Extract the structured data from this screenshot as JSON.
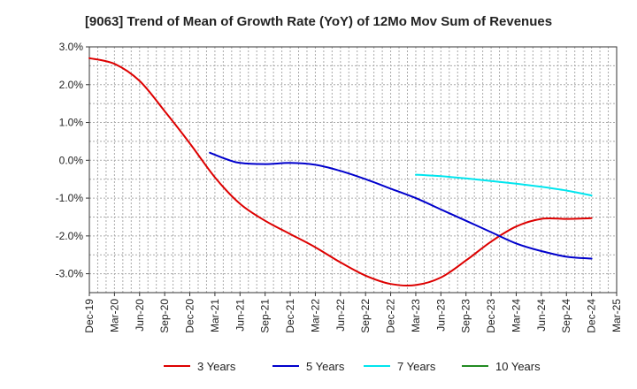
{
  "chart_data": {
    "type": "line",
    "title": "[9063]  Trend of Mean of Growth Rate (YoY) of 12Mo Mov Sum of Revenues",
    "xlabel": "",
    "ylabel": "",
    "ylim": [
      -3.5,
      3.0
    ],
    "y_ticks": [
      3.0,
      2.0,
      1.0,
      0.0,
      -1.0,
      -2.0,
      -3.0
    ],
    "y_tick_labels": [
      "3.0%",
      "2.0%",
      "1.0%",
      "0.0%",
      "-1.0%",
      "-2.0%",
      "-3.0%"
    ],
    "x_tick_labels": [
      "Dec-19",
      "Mar-20",
      "Jun-20",
      "Sep-20",
      "Dec-20",
      "Mar-21",
      "Jun-21",
      "Sep-21",
      "Dec-21",
      "Mar-22",
      "Jun-22",
      "Sep-22",
      "Dec-22",
      "Mar-23",
      "Jun-23",
      "Sep-23",
      "Dec-23",
      "Mar-24",
      "Jun-24",
      "Sep-24",
      "Dec-24",
      "Mar-25"
    ],
    "x_index_range": [
      0,
      21
    ],
    "grid": true,
    "legend_position": "bottom",
    "series": [
      {
        "name": "3 Years",
        "color": "#dd0000",
        "points": [
          [
            0,
            2.7
          ],
          [
            1,
            2.55
          ],
          [
            2,
            2.1
          ],
          [
            3,
            1.3
          ],
          [
            4,
            0.45
          ],
          [
            5,
            -0.45
          ],
          [
            6,
            -1.15
          ],
          [
            7,
            -1.6
          ],
          [
            8,
            -1.95
          ],
          [
            9,
            -2.3
          ],
          [
            10,
            -2.7
          ],
          [
            11,
            -3.05
          ],
          [
            12,
            -3.27
          ],
          [
            13,
            -3.3
          ],
          [
            14,
            -3.1
          ],
          [
            15,
            -2.65
          ],
          [
            16,
            -2.15
          ],
          [
            17,
            -1.75
          ],
          [
            18,
            -1.55
          ],
          [
            19,
            -1.55
          ],
          [
            20,
            -1.53
          ]
        ]
      },
      {
        "name": "5 Years",
        "color": "#0000cc",
        "points": [
          [
            4.8,
            0.2
          ],
          [
            5.5,
            0.02
          ],
          [
            6,
            -0.07
          ],
          [
            7,
            -0.1
          ],
          [
            8,
            -0.07
          ],
          [
            9,
            -0.12
          ],
          [
            10,
            -0.28
          ],
          [
            11,
            -0.5
          ],
          [
            12,
            -0.75
          ],
          [
            13,
            -1.0
          ],
          [
            14,
            -1.3
          ],
          [
            15,
            -1.6
          ],
          [
            16,
            -1.9
          ],
          [
            17,
            -2.2
          ],
          [
            18,
            -2.4
          ],
          [
            19,
            -2.55
          ],
          [
            20,
            -2.6
          ]
        ]
      },
      {
        "name": "7 Years",
        "color": "#00e5ee",
        "points": [
          [
            13,
            -0.38
          ],
          [
            14,
            -0.42
          ],
          [
            15,
            -0.48
          ],
          [
            16,
            -0.55
          ],
          [
            17,
            -0.62
          ],
          [
            18,
            -0.7
          ],
          [
            19,
            -0.8
          ],
          [
            20,
            -0.93
          ]
        ]
      },
      {
        "name": "10 Years",
        "color": "#228b22",
        "points": []
      }
    ]
  }
}
